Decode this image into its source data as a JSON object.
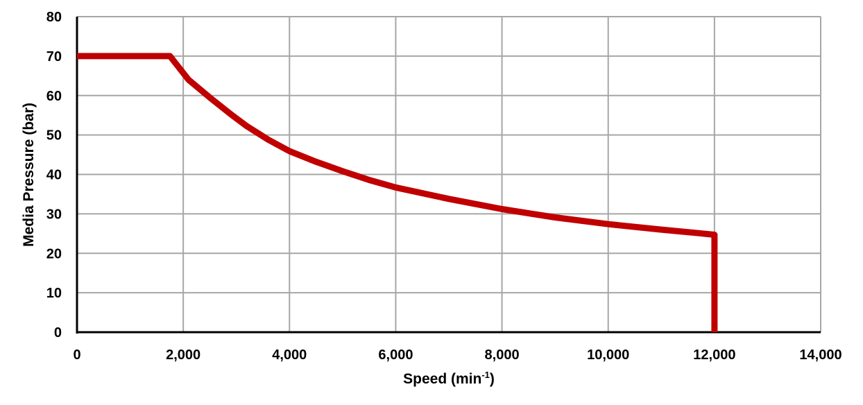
{
  "chart_data": {
    "type": "line",
    "title": "",
    "xlabel": "Speed (min-1)",
    "xlabel_main": "Speed (min",
    "xlabel_sup": "-1",
    "xlabel_close": ")",
    "ylabel": "Media Pressure (bar)",
    "xlim": [
      0,
      14000
    ],
    "ylim": [
      0,
      80
    ],
    "grid": true,
    "legend": null,
    "x_ticks": [
      "0",
      "2,000",
      "4,000",
      "6,000",
      "8,000",
      "10,000",
      "12,000",
      "14,000"
    ],
    "y_ticks": [
      "0",
      "10",
      "20",
      "30",
      "40",
      "50",
      "60",
      "70",
      "80"
    ],
    "series": [
      {
        "name": "Media Pressure",
        "color": "#c00000",
        "x": [
          0,
          1750,
          2100,
          2500,
          2900,
          3200,
          3600,
          4000,
          4500,
          5000,
          5500,
          6000,
          7000,
          8000,
          9000,
          10000,
          11000,
          11700,
          12000,
          12000
        ],
        "y": [
          70,
          70,
          64,
          59.5,
          55.2,
          52.2,
          48.8,
          45.9,
          43.2,
          40.8,
          38.6,
          36.7,
          33.8,
          31.2,
          29.1,
          27.4,
          26,
          25.1,
          24.7,
          0
        ]
      }
    ]
  }
}
